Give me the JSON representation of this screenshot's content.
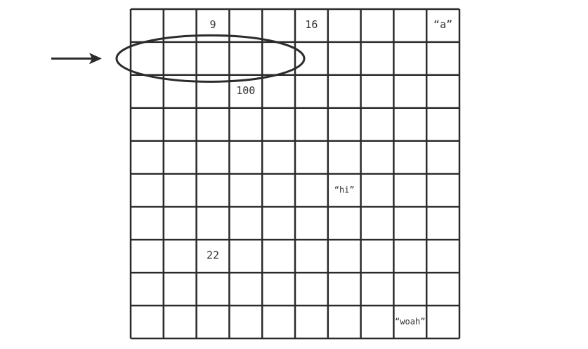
{
  "grid": {
    "rows": 10,
    "cols": 10,
    "cells": [
      {
        "row": 0,
        "col": 2,
        "text": "9",
        "size": "normal"
      },
      {
        "row": 0,
        "col": 5,
        "text": "16",
        "size": "normal"
      },
      {
        "row": 0,
        "col": 9,
        "text": "“a”",
        "size": "normal"
      },
      {
        "row": 2,
        "col": 3,
        "text": "100",
        "size": "normal"
      },
      {
        "row": 5,
        "col": 6,
        "text": "“hi”",
        "size": "small"
      },
      {
        "row": 7,
        "col": 2,
        "text": "22",
        "size": "normal"
      },
      {
        "row": 9,
        "col": 8,
        "text": "“woah”",
        "size": "small"
      }
    ]
  },
  "annotation": {
    "highlighted_row": 1,
    "highlighted_cols": [
      0,
      4
    ]
  }
}
